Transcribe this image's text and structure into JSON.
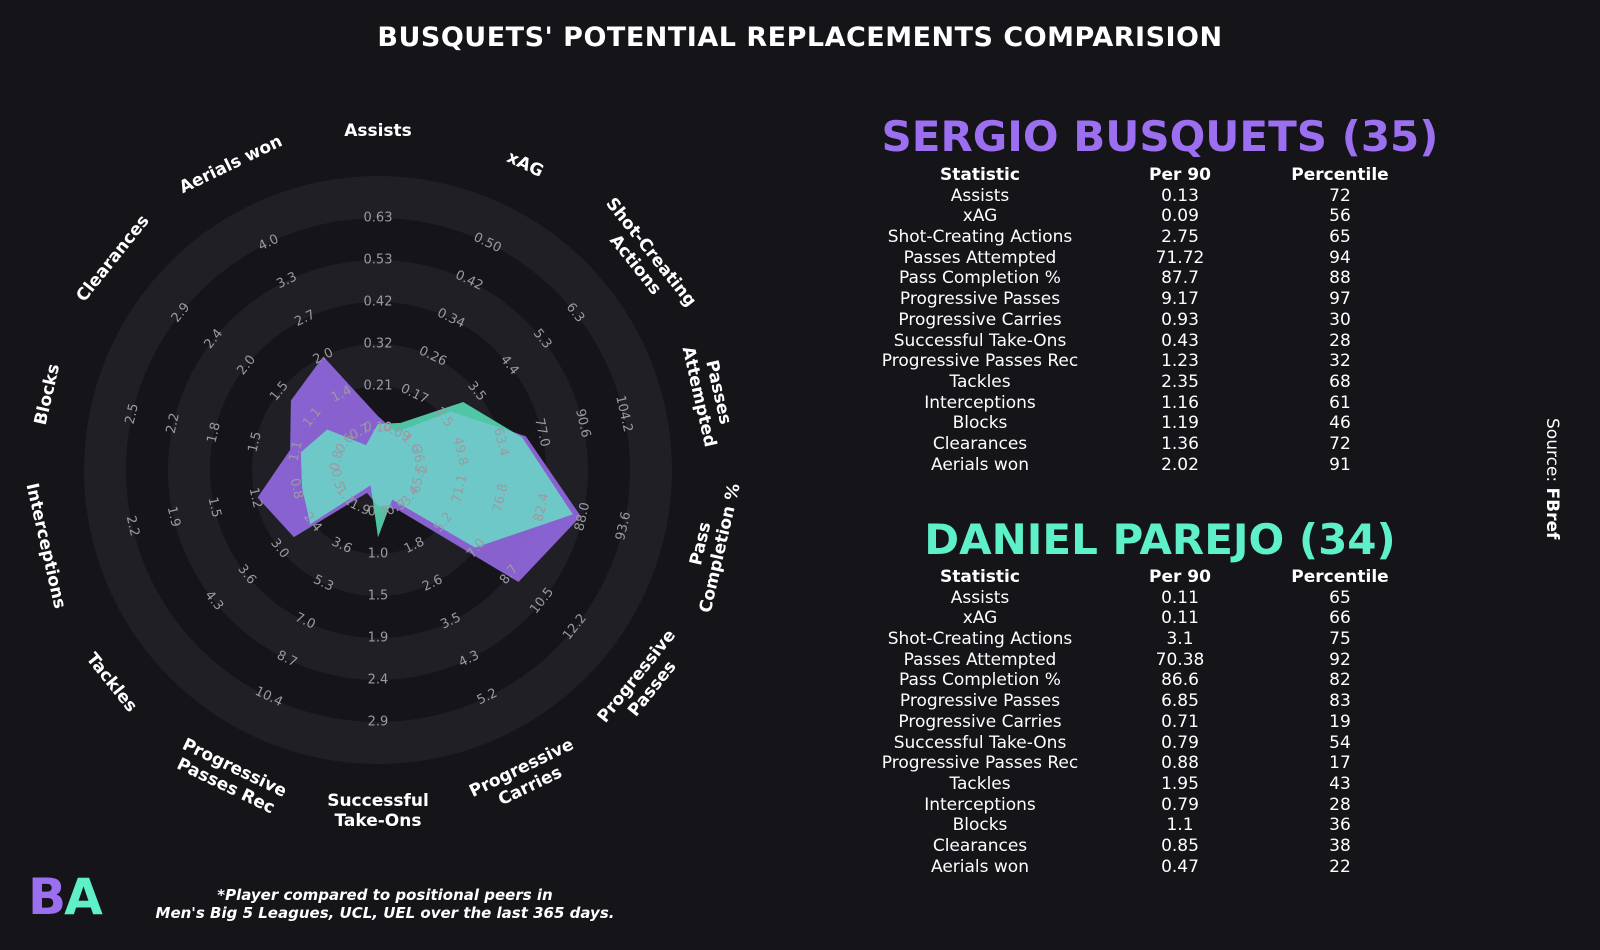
{
  "title": "BUSQUETS' POTENTIAL REPLACEMENTS COMPARISION",
  "source_label": "Source: ",
  "source_name": "FBref",
  "logo": {
    "b": "B",
    "a": "A"
  },
  "footnote_line1": "*Player compared to positional peers in",
  "footnote_line2": "Men's Big 5 Leagues, UCL, UEL over the last 365 days.",
  "colors": {
    "background": "#141419",
    "player1": "#9c6ff0",
    "player2": "#5ef0c8",
    "overlap": "#6ec8c8",
    "ring": "#222228"
  },
  "table_headers": {
    "statistic": "Statistic",
    "per90": "Per 90",
    "percentile": "Percentile"
  },
  "chart_data": {
    "type": "radar",
    "axes": [
      {
        "label": "Assists",
        "ticks": [
          "0.10",
          "0.21",
          "0.32",
          "0.42",
          "0.53",
          "0.63"
        ]
      },
      {
        "label": "xAG",
        "ticks": [
          "0.09",
          "0.17",
          "0.26",
          "0.34",
          "0.42",
          "0.50"
        ]
      },
      {
        "label": "Shot-Creating\nActions",
        "ticks": [
          "1.6",
          "2.5",
          "3.5",
          "4.4",
          "5.3",
          "6.3"
        ]
      },
      {
        "label": "Passes\nAttempted",
        "ticks": [
          "36.2",
          "49.8",
          "63.4",
          "77.0",
          "90.6",
          "104.2"
        ]
      },
      {
        "label": "Pass\nCompletion %",
        "ticks": [
          "65.5",
          "71.1",
          "76.8",
          "82.4",
          "88.0",
          "93.6"
        ]
      },
      {
        "label": "Progressive\nPasses",
        "ticks": [
          "3.4",
          "5.2",
          "7.0",
          "8.7",
          "10.5",
          "12.2"
        ]
      },
      {
        "label": "Progressive\nCarries",
        "ticks": [
          "0.9",
          "1.8",
          "2.6",
          "3.5",
          "4.3",
          "5.2"
        ]
      },
      {
        "label": "Successful\nTake-Ons",
        "ticks": [
          "0.5",
          "1.0",
          "1.5",
          "1.9",
          "2.4",
          "2.9"
        ]
      },
      {
        "label": "Progressive\nPasses Rec",
        "ticks": [
          "1.9",
          "3.6",
          "5.3",
          "7.0",
          "8.7",
          "10.4"
        ]
      },
      {
        "label": "Tackles",
        "ticks": [
          "1.1",
          "2.4",
          "3.0",
          "3.6",
          "4.3"
        ]
      },
      {
        "label": "Interceptions",
        "ticks": [
          "0.5",
          "0.8",
          "1.2",
          "1.5",
          "1.9",
          "2.2"
        ]
      },
      {
        "label": "Blocks",
        "ticks": [
          "0.8",
          "1.1",
          "1.5",
          "1.8",
          "2.2",
          "2.5"
        ]
      },
      {
        "label": "Clearances",
        "ticks": [
          "0.6",
          "1.1",
          "1.5",
          "2.0",
          "2.4",
          "2.9"
        ]
      },
      {
        "label": "Aerials won",
        "ticks": [
          "0.7",
          "1.4",
          "2.0",
          "2.7",
          "3.3",
          "4.0"
        ]
      }
    ],
    "series": [
      {
        "name": "SERGIO BUSQUETS (35)",
        "values": [
          0.13,
          0.09,
          2.75,
          71.72,
          87.7,
          9.17,
          0.93,
          0.43,
          1.23,
          2.35,
          1.16,
          1.19,
          1.36,
          2.02
        ]
      },
      {
        "name": "DANIEL PAREJO (34)",
        "values": [
          0.11,
          0.11,
          3.1,
          70.38,
          86.6,
          6.85,
          0.71,
          0.79,
          0.88,
          1.95,
          0.79,
          1.1,
          0.85,
          0.47
        ]
      }
    ]
  },
  "players": [
    {
      "name": "SERGIO BUSQUETS (35)",
      "rows": [
        {
          "stat": "Assists",
          "per90": "0.13",
          "pct": "72"
        },
        {
          "stat": "xAG",
          "per90": "0.09",
          "pct": "56"
        },
        {
          "stat": "Shot-Creating Actions",
          "per90": "2.75",
          "pct": "65"
        },
        {
          "stat": "Passes Attempted",
          "per90": "71.72",
          "pct": "94"
        },
        {
          "stat": "Pass Completion %",
          "per90": "87.7",
          "pct": "88"
        },
        {
          "stat": "Progressive Passes",
          "per90": "9.17",
          "pct": "97"
        },
        {
          "stat": "Progressive Carries",
          "per90": "0.93",
          "pct": "30"
        },
        {
          "stat": "Successful Take-Ons",
          "per90": "0.43",
          "pct": "28"
        },
        {
          "stat": "Progressive Passes Rec",
          "per90": "1.23",
          "pct": "32"
        },
        {
          "stat": "Tackles",
          "per90": "2.35",
          "pct": "68"
        },
        {
          "stat": "Interceptions",
          "per90": "1.16",
          "pct": "61"
        },
        {
          "stat": "Blocks",
          "per90": "1.19",
          "pct": "46"
        },
        {
          "stat": "Clearances",
          "per90": "1.36",
          "pct": "72"
        },
        {
          "stat": "Aerials won",
          "per90": "2.02",
          "pct": "91"
        }
      ]
    },
    {
      "name": "DANIEL PAREJO (34)",
      "rows": [
        {
          "stat": "Assists",
          "per90": "0.11",
          "pct": "65"
        },
        {
          "stat": "xAG",
          "per90": "0.11",
          "pct": "66"
        },
        {
          "stat": "Shot-Creating Actions",
          "per90": "3.1",
          "pct": "75"
        },
        {
          "stat": "Passes Attempted",
          "per90": "70.38",
          "pct": "92"
        },
        {
          "stat": "Pass Completion %",
          "per90": "86.6",
          "pct": "82"
        },
        {
          "stat": "Progressive Passes",
          "per90": "6.85",
          "pct": "83"
        },
        {
          "stat": "Progressive Carries",
          "per90": "0.71",
          "pct": "19"
        },
        {
          "stat": "Successful Take-Ons",
          "per90": "0.79",
          "pct": "54"
        },
        {
          "stat": "Progressive Passes Rec",
          "per90": "0.88",
          "pct": "17"
        },
        {
          "stat": "Tackles",
          "per90": "1.95",
          "pct": "43"
        },
        {
          "stat": "Interceptions",
          "per90": "0.79",
          "pct": "28"
        },
        {
          "stat": "Blocks",
          "per90": "1.1",
          "pct": "36"
        },
        {
          "stat": "Clearances",
          "per90": "0.85",
          "pct": "38"
        },
        {
          "stat": "Aerials won",
          "per90": "0.47",
          "pct": "22"
        }
      ]
    }
  ]
}
